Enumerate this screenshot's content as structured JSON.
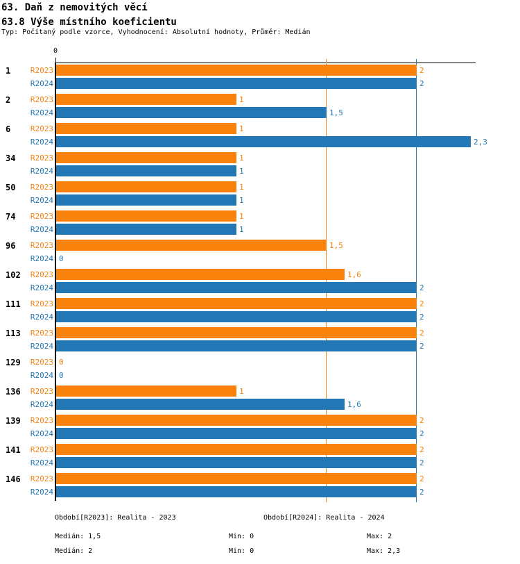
{
  "header": {
    "title1": "63. Daň z nemovitých věcí",
    "title2": "63.8 Výše místního koeficientu",
    "subtitle": "Typ: Počítaný podle vzorce, Vyhodnocení: Absolutní hodnoty, Průměr: Medián"
  },
  "colors": {
    "r2023": "#F9820D",
    "r2024": "#2277B4",
    "axis": "#000000"
  },
  "axis": {
    "zero_label": "0"
  },
  "chart_data": {
    "type": "bar",
    "orientation": "horizontal",
    "title": "63.8 Výše místního koeficientu",
    "xlim": [
      0,
      2.33
    ],
    "grid": false,
    "categories": [
      "1",
      "2",
      "6",
      "34",
      "50",
      "74",
      "96",
      "102",
      "111",
      "113",
      "129",
      "136",
      "139",
      "141",
      "146"
    ],
    "series": [
      {
        "name": "R2023",
        "color": "#F9820D",
        "values": [
          2,
          1,
          1,
          1,
          1,
          1,
          1.5,
          1.6,
          2,
          2,
          0,
          1,
          2,
          2,
          2
        ],
        "labels": [
          "2",
          "1",
          "1",
          "1",
          "1",
          "1",
          "1,5",
          "1,6",
          "2",
          "2",
          "0",
          "1",
          "2",
          "2",
          "2"
        ]
      },
      {
        "name": "R2024",
        "color": "#2277B4",
        "values": [
          2,
          1.5,
          2.3,
          1,
          1,
          1,
          0,
          2,
          2,
          2,
          0,
          1.6,
          2,
          2,
          2
        ],
        "labels": [
          "2",
          "1,5",
          "2,3",
          "1",
          "1",
          "1",
          "0",
          "2",
          "2",
          "2",
          "0",
          "1,6",
          "2",
          "2",
          "2"
        ]
      }
    ],
    "reference_lines": [
      {
        "name": "median-r2023",
        "value": 1.5,
        "color": "#F9820D"
      },
      {
        "name": "median-r2024",
        "value": 2.0,
        "color": "#2277B4"
      }
    ]
  },
  "footer": {
    "legend_r2023": "Období[R2023]: Realita - 2023",
    "legend_r2024": "Období[R2024]: Realita - 2024",
    "stats_r2023": {
      "median": "Medián: 1,5",
      "min": "Min: 0",
      "max": "Max: 2"
    },
    "stats_r2024": {
      "median": "Medián: 2",
      "min": "Min: 0",
      "max": "Max: 2,3"
    }
  }
}
